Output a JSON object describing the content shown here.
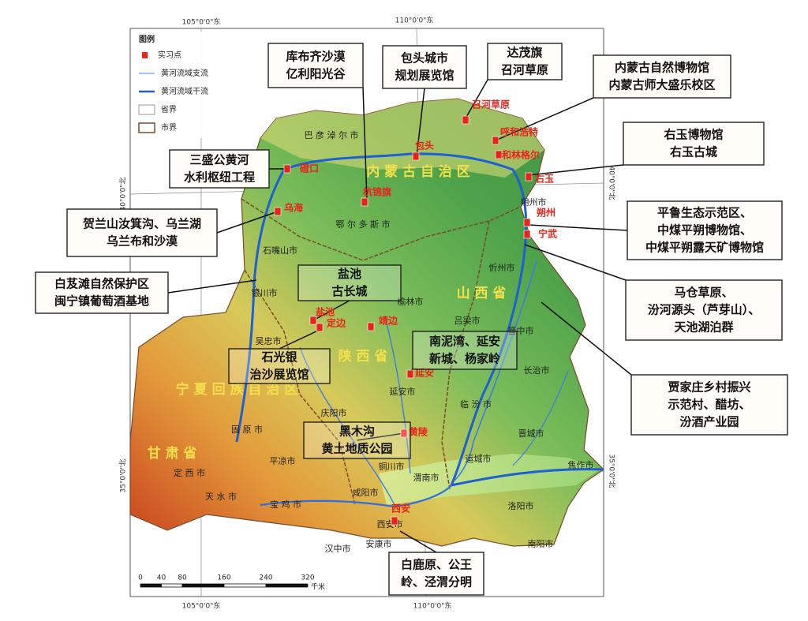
{
  "legend": {
    "title": "图例",
    "items": [
      "实习点",
      "黄河流域支流",
      "黄河流域干流",
      "省界",
      "市界"
    ]
  },
  "coordinates": {
    "lon": [
      "105°0'0\"东",
      "110°0'0\"东"
    ],
    "lat": [
      "40°0'0\"北",
      "35°0'0\"北"
    ]
  },
  "regions": [
    "内 蒙 古 自 治 区",
    "山 西 省",
    "陕 西 省",
    "宁 夏 回 族 自 治 区",
    "甘 肃 省"
  ],
  "cities": [
    "巴 彦 淖 尔 市",
    "鄂 尔 多 斯 市",
    "石嘴山市",
    "银川市",
    "吴忠市",
    "榆林市",
    "吕梁市",
    "忻州市",
    "朔州市",
    "晋中市",
    "长治市",
    "临 汾 市",
    "晋城市",
    "运城市",
    "延安市",
    "庆阳市",
    "固 原 市",
    "平凉市",
    "定 西 市",
    "天 水 市",
    "宝 鸡 市",
    "咸阳市",
    "铜川市",
    "渭南市",
    "西安市",
    "汉中市",
    "安康市",
    "洛阳市",
    "焦作市",
    "南阳市"
  ],
  "sites": [
    "磴口",
    "杭锦旗",
    "包头",
    "召河草原",
    "呼和浩特",
    "和林格尔",
    "右玉",
    "乌海",
    "朔州",
    "宁武",
    "盐池",
    "定边",
    "靖边",
    "延安",
    "黄陵",
    "西安"
  ],
  "callouts": [
    {
      "lines": [
        "库布齐沙漠",
        "亿利阳光谷"
      ]
    },
    {
      "lines": [
        "包头城市",
        "规划展览馆"
      ]
    },
    {
      "lines": [
        "达茂旗",
        "召河草原"
      ]
    },
    {
      "lines": [
        "内蒙古自然博物馆",
        "内蒙古师大盛乐校区"
      ]
    },
    {
      "lines": [
        "右玉博物馆",
        "右玉古城"
      ]
    },
    {
      "lines": [
        "平鲁生态示范区、",
        "中煤平朔博物馆、",
        "中煤平朔露天矿博物馆"
      ]
    },
    {
      "lines": [
        "马仓草原、",
        "汾河源头（芦芽山）、",
        "天池湖泊群"
      ]
    },
    {
      "lines": [
        "贾家庄乡村振兴",
        "示范村、醋坊、",
        "汾酒产业园"
      ]
    },
    {
      "lines": [
        "白鹿原、公王",
        "岭、泾渭分明"
      ]
    },
    {
      "lines": [
        "黑木沟",
        "黄土地质公园"
      ]
    },
    {
      "lines": [
        "南泥湾、延安",
        "新城、杨家岭"
      ]
    },
    {
      "lines": [
        "石光银",
        "治沙展览馆"
      ]
    },
    {
      "lines": [
        "盐池",
        "古长城"
      ]
    },
    {
      "lines": [
        "白芨滩自然保护区",
        "闽宁镇葡萄酒基地"
      ]
    },
    {
      "lines": [
        "贺兰山汝箕沟、乌兰湖",
        "乌兰布和沙漠"
      ]
    },
    {
      "lines": [
        "三盛公黄河",
        "水利枢纽工程"
      ]
    }
  ],
  "scale": {
    "ticks": [
      0,
      40,
      80,
      160,
      240,
      320
    ],
    "unit": "千米"
  }
}
